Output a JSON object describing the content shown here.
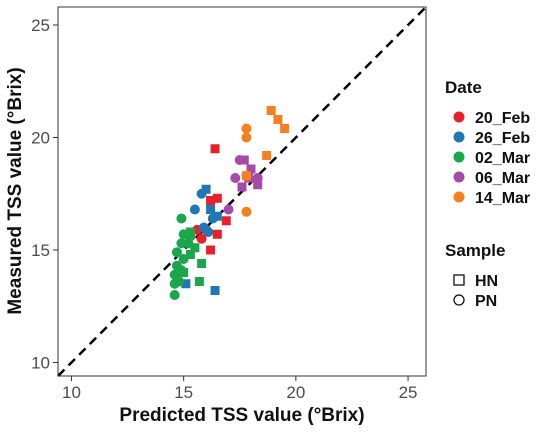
{
  "chart_data": {
    "type": "scatter",
    "xlabel": "Predicted TSS value (°Brix)",
    "ylabel": "Measured TSS value (°Brix)",
    "xlim": [
      9.4,
      25.8
    ],
    "ylim": [
      9.4,
      25.8
    ],
    "x_ticks": [
      "10",
      "15",
      "20",
      "25"
    ],
    "y_ticks": [
      "10",
      "15",
      "20",
      "25"
    ],
    "grid": false,
    "reference_line": {
      "style": "dashed",
      "slope": 1,
      "intercept": 0,
      "color": "#000000"
    },
    "legend_position": "right",
    "color_legend": {
      "title": "Date",
      "items": [
        {
          "label": "20_Feb",
          "color": "#e8202a"
        },
        {
          "label": "26_Feb",
          "color": "#1f78b4"
        },
        {
          "label": "02_Mar",
          "color": "#1aa64a"
        },
        {
          "label": "06_Mar",
          "color": "#a44aaa"
        },
        {
          "label": "14_Mar",
          "color": "#f5801f"
        }
      ]
    },
    "shape_legend": {
      "title": "Sample",
      "items": [
        {
          "label": "HN",
          "shape": "square"
        },
        {
          "label": "PN",
          "shape": "circle"
        }
      ]
    },
    "series": [
      {
        "date": "20_Feb",
        "points": [
          {
            "x": 16.4,
            "y": 19.5,
            "shape": "square"
          },
          {
            "x": 16.5,
            "y": 17.3,
            "shape": "square"
          },
          {
            "x": 16.2,
            "y": 17.2,
            "shape": "square"
          },
          {
            "x": 16.9,
            "y": 16.3,
            "shape": "square"
          },
          {
            "x": 16.5,
            "y": 15.7,
            "shape": "square"
          },
          {
            "x": 16.2,
            "y": 15.0,
            "shape": "square"
          },
          {
            "x": 15.8,
            "y": 15.5,
            "shape": "circle"
          },
          {
            "x": 16.0,
            "y": 15.9,
            "shape": "circle"
          },
          {
            "x": 15.6,
            "y": 15.9,
            "shape": "circle"
          }
        ]
      },
      {
        "date": "26_Feb",
        "points": [
          {
            "x": 16.0,
            "y": 17.7,
            "shape": "square"
          },
          {
            "x": 16.2,
            "y": 16.8,
            "shape": "square"
          },
          {
            "x": 16.5,
            "y": 16.5,
            "shape": "square"
          },
          {
            "x": 16.4,
            "y": 13.2,
            "shape": "square"
          },
          {
            "x": 15.1,
            "y": 13.5,
            "shape": "square"
          },
          {
            "x": 15.8,
            "y": 17.5,
            "shape": "circle"
          },
          {
            "x": 15.5,
            "y": 16.8,
            "shape": "circle"
          },
          {
            "x": 16.3,
            "y": 16.4,
            "shape": "circle"
          },
          {
            "x": 15.9,
            "y": 16.0,
            "shape": "circle"
          },
          {
            "x": 16.1,
            "y": 15.8,
            "shape": "circle"
          }
        ]
      },
      {
        "date": "02_Mar",
        "points": [
          {
            "x": 15.3,
            "y": 15.8,
            "shape": "square"
          },
          {
            "x": 15.5,
            "y": 15.1,
            "shape": "square"
          },
          {
            "x": 15.3,
            "y": 14.8,
            "shape": "square"
          },
          {
            "x": 15.8,
            "y": 14.4,
            "shape": "square"
          },
          {
            "x": 15.0,
            "y": 14.0,
            "shape": "square"
          },
          {
            "x": 15.7,
            "y": 13.6,
            "shape": "square"
          },
          {
            "x": 14.9,
            "y": 16.4,
            "shape": "circle"
          },
          {
            "x": 15.0,
            "y": 15.7,
            "shape": "circle"
          },
          {
            "x": 15.3,
            "y": 15.6,
            "shape": "circle"
          },
          {
            "x": 14.9,
            "y": 15.3,
            "shape": "circle"
          },
          {
            "x": 15.2,
            "y": 15.3,
            "shape": "circle"
          },
          {
            "x": 14.7,
            "y": 14.9,
            "shape": "circle"
          },
          {
            "x": 15.0,
            "y": 14.6,
            "shape": "circle"
          },
          {
            "x": 14.7,
            "y": 14.3,
            "shape": "circle"
          },
          {
            "x": 14.9,
            "y": 14.1,
            "shape": "circle"
          },
          {
            "x": 14.6,
            "y": 13.9,
            "shape": "circle"
          },
          {
            "x": 14.8,
            "y": 13.6,
            "shape": "circle"
          },
          {
            "x": 14.6,
            "y": 13.5,
            "shape": "circle"
          },
          {
            "x": 14.6,
            "y": 13.0,
            "shape": "circle"
          }
        ]
      },
      {
        "date": "06_Mar",
        "points": [
          {
            "x": 17.7,
            "y": 19.0,
            "shape": "square"
          },
          {
            "x": 18.0,
            "y": 18.6,
            "shape": "square"
          },
          {
            "x": 17.9,
            "y": 18.2,
            "shape": "square"
          },
          {
            "x": 17.6,
            "y": 17.8,
            "shape": "square"
          },
          {
            "x": 18.3,
            "y": 17.9,
            "shape": "square"
          },
          {
            "x": 17.5,
            "y": 19.0,
            "shape": "circle"
          },
          {
            "x": 17.3,
            "y": 18.2,
            "shape": "circle"
          },
          {
            "x": 18.3,
            "y": 18.2,
            "shape": "circle"
          },
          {
            "x": 17.0,
            "y": 16.8,
            "shape": "circle"
          }
        ]
      },
      {
        "date": "14_Mar",
        "points": [
          {
            "x": 18.9,
            "y": 21.2,
            "shape": "square"
          },
          {
            "x": 19.2,
            "y": 20.8,
            "shape": "square"
          },
          {
            "x": 19.5,
            "y": 20.4,
            "shape": "square"
          },
          {
            "x": 18.7,
            "y": 19.2,
            "shape": "square"
          },
          {
            "x": 17.8,
            "y": 18.3,
            "shape": "square"
          },
          {
            "x": 17.8,
            "y": 20.4,
            "shape": "circle"
          },
          {
            "x": 17.8,
            "y": 20.0,
            "shape": "circle"
          },
          {
            "x": 17.8,
            "y": 18.3,
            "shape": "circle"
          },
          {
            "x": 17.8,
            "y": 16.7,
            "shape": "circle"
          }
        ]
      }
    ]
  }
}
